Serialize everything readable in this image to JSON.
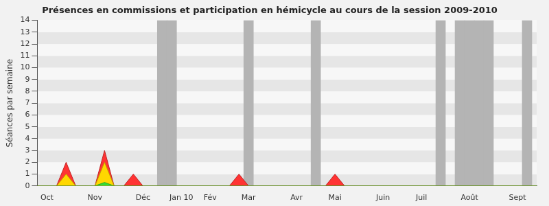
{
  "chart_data": {
    "type": "line",
    "title": "Présences en commissions et participation en hémicycle au cours de la session 2009-2010",
    "y_label": "Séances par semaine",
    "categories": [
      null,
      "Oct",
      null,
      null,
      null,
      null,
      "Nov",
      null,
      null,
      null,
      null,
      "Déc",
      null,
      null,
      null,
      "Jan 10",
      null,
      null,
      "Fév",
      null,
      null,
      null,
      "Mar",
      null,
      null,
      null,
      null,
      "Avr",
      null,
      null,
      null,
      "Mai",
      null,
      null,
      null,
      null,
      "Juin",
      null,
      null,
      null,
      "Juil",
      null,
      null,
      null,
      null,
      "Août",
      null,
      null,
      null,
      null,
      "Sept",
      null,
      null
    ],
    "series": [
      {
        "type": "bar",
        "color": "#b4b4b4",
        "values": [
          null,
          null,
          null,
          null,
          null,
          null,
          null,
          null,
          null,
          null,
          null,
          null,
          null,
          14,
          14,
          null,
          null,
          null,
          null,
          null,
          null,
          null,
          14,
          null,
          null,
          null,
          null,
          null,
          null,
          14,
          null,
          null,
          null,
          null,
          null,
          null,
          null,
          null,
          null,
          null,
          null,
          null,
          14,
          null,
          14,
          14,
          14,
          14,
          null,
          null,
          null,
          14,
          null
        ]
      },
      {
        "type": "area",
        "color": "#ff3333",
        "values": [
          0,
          0,
          0,
          2,
          0,
          0,
          0,
          3,
          0,
          0,
          1,
          0,
          0,
          0,
          0,
          0,
          0,
          0,
          0,
          0,
          0,
          1,
          0,
          0,
          0,
          0,
          0,
          0,
          0,
          0,
          0,
          1,
          0,
          0,
          0,
          0,
          0,
          0,
          0,
          0,
          0,
          0,
          0,
          0,
          0,
          0,
          0,
          0,
          0,
          0,
          0,
          0,
          0
        ]
      },
      {
        "type": "area",
        "color": "#ffd700",
        "values": [
          0,
          0,
          0,
          1,
          0,
          0,
          0,
          2,
          0,
          0,
          0,
          0,
          0,
          0,
          0,
          0,
          0,
          0,
          0,
          0,
          0,
          0,
          0,
          0,
          0,
          0,
          0,
          0,
          0,
          0,
          0,
          0,
          0,
          0,
          0,
          0,
          0,
          0,
          0,
          0,
          0,
          0,
          0,
          0,
          0,
          0,
          0,
          0,
          0,
          0,
          0,
          0,
          0
        ]
      },
      {
        "type": "area",
        "color": "#33dd33",
        "values": [
          0,
          0,
          0,
          0,
          0,
          0,
          0,
          0.3,
          0,
          0,
          0,
          0,
          0,
          0,
          0,
          0,
          0,
          0,
          0,
          0,
          0,
          0,
          0,
          0,
          0,
          0,
          0,
          0,
          0,
          0,
          0,
          0,
          0,
          0,
          0,
          0,
          0,
          0,
          0,
          0,
          0,
          0,
          0,
          0,
          0,
          0,
          0,
          0,
          0,
          0,
          0,
          0,
          0
        ]
      }
    ],
    "ylim": [
      0,
      14
    ],
    "yticks": [
      0,
      1,
      2,
      3,
      4,
      5,
      6,
      7,
      8,
      9,
      10,
      11,
      12,
      13,
      14
    ],
    "grid": true
  }
}
